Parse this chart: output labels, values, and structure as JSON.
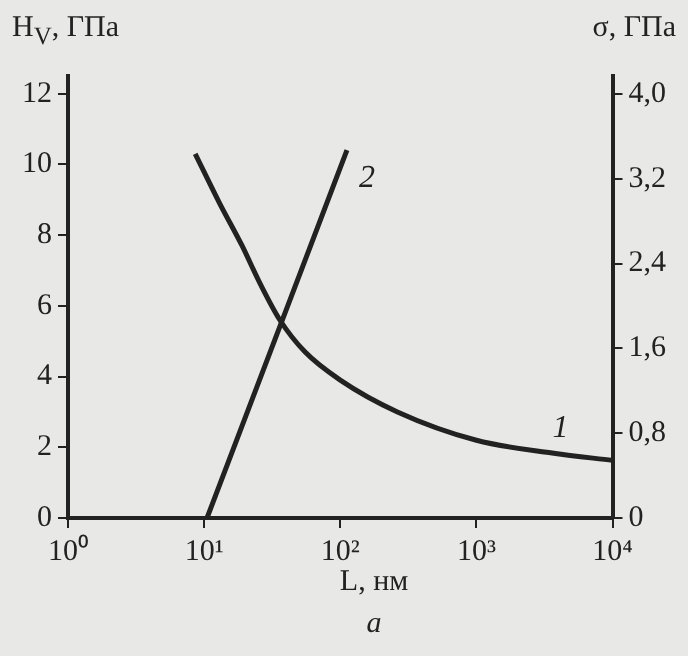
{
  "chart_data": {
    "type": "line",
    "subtitle": "a",
    "xlabel": "L, нм",
    "ylabel": "H$_{V}$, ГПа",
    "y2label": "σ, ГПа",
    "log": "x",
    "xlim": [
      1,
      10000
    ],
    "xticks": [
      {
        "value": 1,
        "label": "10⁰"
      },
      {
        "value": 10,
        "label": "10¹"
      },
      {
        "value": 100,
        "label": "10²"
      },
      {
        "value": 1000,
        "label": "10³"
      },
      {
        "value": 10000,
        "label": "10⁴"
      }
    ],
    "ylim": [
      0,
      12.5
    ],
    "yticks": [
      0,
      2,
      4,
      6,
      8,
      10,
      12
    ],
    "y2lim": [
      0,
      4.17
    ],
    "y2ticks": [
      {
        "value": 0,
        "label": "0"
      },
      {
        "value": 0.8,
        "label": "0,8"
      },
      {
        "value": 1.6,
        "label": "1,6"
      },
      {
        "value": 2.4,
        "label": "2,4"
      },
      {
        "value": 3.2,
        "label": "3,2"
      },
      {
        "value": 4,
        "label": "4,0"
      }
    ],
    "series": [
      {
        "name": "1",
        "color": "#222222",
        "x": [
          8.6,
          13,
          19,
          26,
          36,
          55,
          100,
          263,
          1000,
          3700,
          10000
        ],
        "values": [
          10.3,
          8.9,
          7.7,
          6.6,
          5.6,
          4.7,
          3.9,
          3.0,
          2.2,
          1.83,
          1.63
        ]
      },
      {
        "name": "2",
        "color": "#222222",
        "axis": "y2",
        "x": [
          10.5,
          112
        ],
        "values": [
          0,
          3.47
        ]
      }
    ],
    "grid": false,
    "legend": false,
    "marker": "none",
    "line_style": "solid"
  }
}
